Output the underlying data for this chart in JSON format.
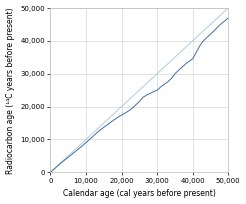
{
  "title": "",
  "xlabel": "Calendar age (cal years before present)",
  "ylabel": "Radiocarbon age (¹⁴C years before present)",
  "xlim": [
    0,
    50000
  ],
  "ylim": [
    0,
    50000
  ],
  "xticks": [
    0,
    10000,
    20000,
    30000,
    40000,
    50000
  ],
  "yticks": [
    0,
    10000,
    20000,
    30000,
    40000,
    50000
  ],
  "curve_color": "#3a6fb0",
  "diagonal_color": "#aecde3",
  "background_color": "#ffffff",
  "grid_color": "#cccccc",
  "figsize": [
    2.46,
    2.04
  ],
  "dpi": 100,
  "xlabel_fontsize": 5.5,
  "ylabel_fontsize": 5.5,
  "tick_fontsize": 5.0
}
